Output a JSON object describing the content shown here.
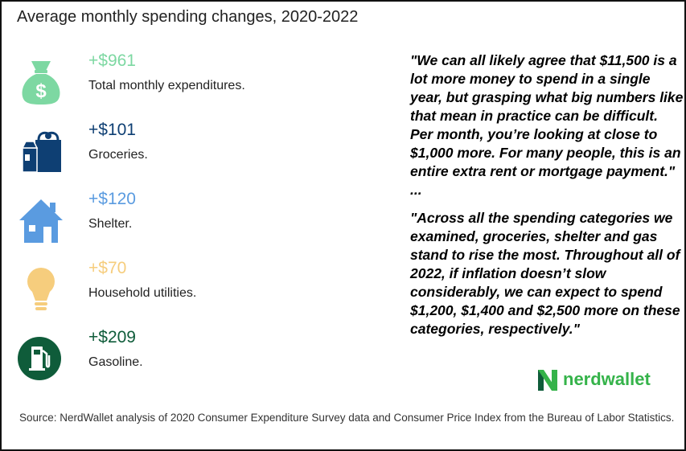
{
  "title": "Average monthly spending changes, 2020-2022",
  "items": [
    {
      "icon": "money-bag-icon",
      "amount": "+$961",
      "label": "Total monthly expenditures.",
      "color": "#7dd8a2"
    },
    {
      "icon": "groceries-icon",
      "amount": "+$101",
      "label": "Groceries.",
      "color": "#0e3f73"
    },
    {
      "icon": "house-icon",
      "amount": "+$120",
      "label": "Shelter.",
      "color": "#5a9be0"
    },
    {
      "icon": "lightbulb-icon",
      "amount": "+$70",
      "label": "Household utilities.",
      "color": "#f6cd7d"
    },
    {
      "icon": "gas-pump-icon",
      "amount": "+$209",
      "label": "Gasoline.",
      "color": "#0f5c3a"
    }
  ],
  "quote1": "\"We can all likely agree that $11,500 is a lot more money to spend in a single year, but grasping what big numbers like that mean in practice can be difficult. Per month, you’re looking at close to $1,000 more. For many people, this is an entire extra rent or mortgage payment.\" ...",
  "quote2": "\"Across all the spending categories we examined, groceries, shelter and gas stand to rise the most. Throughout all of 2022, if inflation doesn’t slow considerably, we can expect to spend $1,200, $1,400 and $2,500 more on these categories, respectively.\"",
  "logo": {
    "text": "nerdwallet",
    "color": "#35b34a"
  },
  "source": "Source: NerdWallet analysis of 2020 Consumer Expenditure Survey data and Consumer Price Index from the Bureau of Labor Statistics."
}
